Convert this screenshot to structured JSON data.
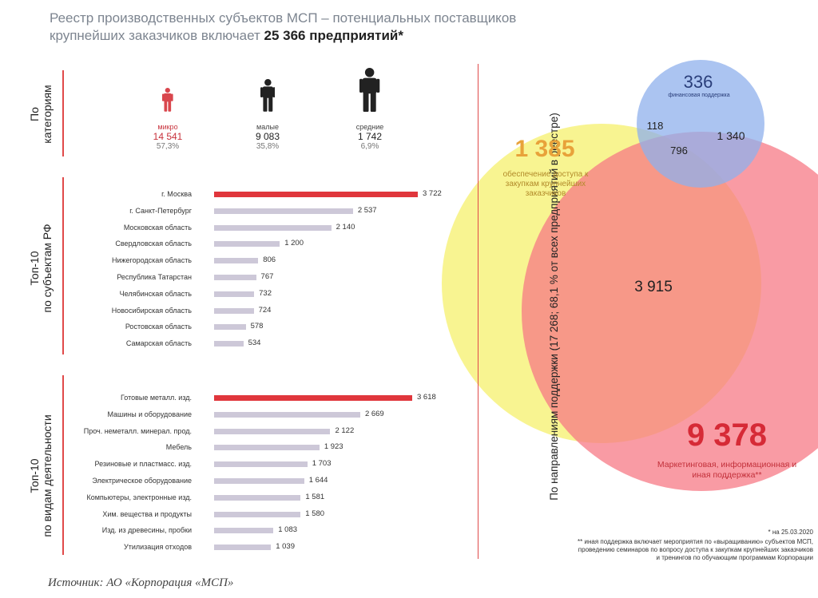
{
  "header": {
    "title_line1": "Реестр производственных субъектов МСП – потенциальных поставщиков",
    "title_line2_prefix": "крупнейших заказчиков включает ",
    "title_line2_highlight": "25 366 предприятий*"
  },
  "sections": {
    "categories": [
      "По",
      "категориям"
    ],
    "regions": [
      "Топ-10",
      "по субъектам РФ"
    ],
    "industries": [
      "Топ-10",
      "по видам деятельности"
    ],
    "support": "По направлениям поддержки (17 268; 68,1 % от всех предприятий в реестре)"
  },
  "colors": {
    "accent_red": "#e0363c",
    "bar_gray": "#cdc8d8",
    "circle_yellow": "#f7f27e",
    "circle_red": "#f77a86",
    "circle_blue": "#8fb0ec"
  },
  "categories": [
    {
      "label": "микро",
      "value": "14 541",
      "pct": "57,3%",
      "icon": "person-small-icon",
      "highlight": true
    },
    {
      "label": "малые",
      "value": "9 083",
      "pct": "35,8%",
      "icon": "person-medium-icon",
      "highlight": false
    },
    {
      "label": "средние",
      "value": "1 742",
      "pct": "6,9%",
      "icon": "person-large-icon",
      "highlight": false
    }
  ],
  "chart_data": [
    {
      "type": "bar",
      "orientation": "horizontal",
      "categories": [
        "г. Москва",
        "г. Санкт-Петербург",
        "Московская область",
        "Свердловская область",
        "Нижегородская область",
        "Республика Татарстан",
        "Челябинская область",
        "Новосибирская область",
        "Ростовская область",
        "Самарская область"
      ],
      "values": [
        3722,
        2537,
        2140,
        1200,
        806,
        767,
        732,
        724,
        578,
        534
      ],
      "value_labels": [
        "3 722",
        "2 537",
        "2 140",
        "1 200",
        "806",
        "767",
        "732",
        "724",
        "578",
        "534"
      ],
      "xlim": [
        0,
        3722
      ]
    },
    {
      "type": "bar",
      "orientation": "horizontal",
      "categories": [
        "Готовые металл. изд.",
        "Машины и оборудование",
        "Проч. неметалл. минерал. прод.",
        "Мебель",
        "Резиновые и пластмасс. изд.",
        "Электрическое оборудование",
        "Компьютеры, электронные изд.",
        "Хим. вещества и продукты",
        "Изд. из древесины, пробки",
        "Утилизация отходов"
      ],
      "values": [
        3618,
        2669,
        2122,
        1923,
        1703,
        1644,
        1581,
        1580,
        1083,
        1039
      ],
      "value_labels": [
        "3 618",
        "2 669",
        "2 122",
        "1 923",
        "1 703",
        "1 644",
        "1 581",
        "1 580",
        "1 083",
        "1 039"
      ],
      "xlim": [
        0,
        3618
      ]
    },
    {
      "type": "venn",
      "sets": [
        {
          "label": "обеспечение доступа к закупкам крупнейших заказчиков",
          "only": "1 385"
        },
        {
          "label": "Маркетинговая, информационная и иная поддержка**",
          "only": "9 378"
        },
        {
          "label": "финансовая поддержка",
          "only": "336"
        }
      ],
      "intersections": {
        "access_and_marketing": "3 915",
        "access_and_financial": "118",
        "marketing_and_financial": "1 340",
        "all_three": "796"
      }
    }
  ],
  "footnotes": {
    "date": "* на 25.03.2020",
    "other_support": [
      "** иная поддержка включает мероприятия по «выращиванию» субъектов МСП,",
      "проведению семинаров по вопросу доступа к закупкам крупнейших заказчиков",
      "и тренингов по обучающим программам Корпорации"
    ]
  },
  "source": "Источник: АО «Корпорация «МСП»"
}
